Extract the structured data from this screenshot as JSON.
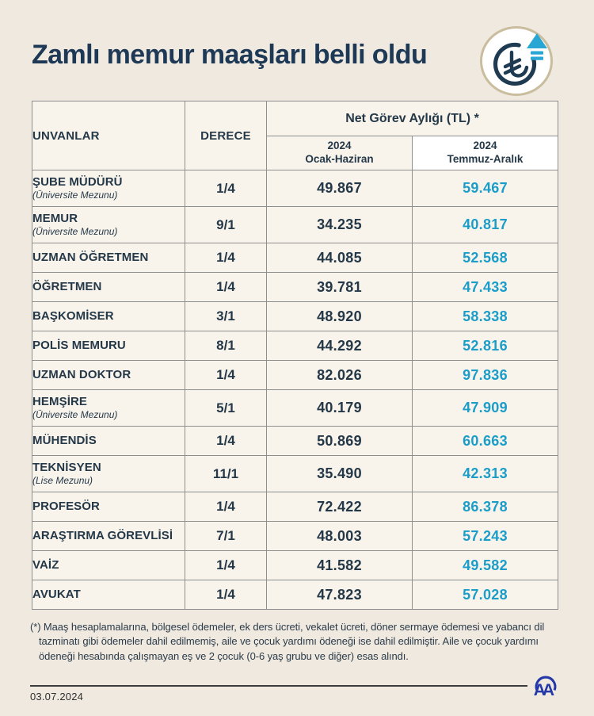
{
  "header": {
    "title": "Zamlı memur maaşları belli oldu"
  },
  "table": {
    "col_unvanlar": "UNVANLAR",
    "col_derece": "DERECE",
    "group_header": "Net Görev Aylığı (TL) *",
    "sub_col_1": {
      "line1": "2024",
      "line2": "Ocak-Haziran"
    },
    "sub_col_2": {
      "line1": "2024",
      "line2": "Temmuz-Aralık"
    },
    "rows": [
      {
        "title": "ŞUBE MÜDÜRÜ",
        "note": "(Üniversite Mezunu)",
        "derece": "1/4",
        "ocak_haziran": "49.867",
        "temmuz_aralik": "59.467"
      },
      {
        "title": "MEMUR",
        "note": "(Üniversite Mezunu)",
        "derece": "9/1",
        "ocak_haziran": "34.235",
        "temmuz_aralik": "40.817"
      },
      {
        "title": "UZMAN ÖĞRETMEN",
        "note": "",
        "derece": "1/4",
        "ocak_haziran": "44.085",
        "temmuz_aralik": "52.568"
      },
      {
        "title": "ÖĞRETMEN",
        "note": "",
        "derece": "1/4",
        "ocak_haziran": "39.781",
        "temmuz_aralik": "47.433"
      },
      {
        "title": "BAŞKOMİSER",
        "note": "",
        "derece": "3/1",
        "ocak_haziran": "48.920",
        "temmuz_aralik": "58.338"
      },
      {
        "title": "POLİS MEMURU",
        "note": "",
        "derece": "8/1",
        "ocak_haziran": "44.292",
        "temmuz_aralik": "52.816"
      },
      {
        "title": "UZMAN DOKTOR",
        "note": "",
        "derece": "1/4",
        "ocak_haziran": "82.026",
        "temmuz_aralik": "97.836"
      },
      {
        "title": "HEMŞİRE",
        "note": "(Üniversite Mezunu)",
        "derece": "5/1",
        "ocak_haziran": "40.179",
        "temmuz_aralik": "47.909"
      },
      {
        "title": "MÜHENDİS",
        "note": "",
        "derece": "1/4",
        "ocak_haziran": "50.869",
        "temmuz_aralik": "60.663"
      },
      {
        "title": "TEKNİSYEN",
        "note": "(Lise Mezunu)",
        "derece": "11/1",
        "ocak_haziran": "35.490",
        "temmuz_aralik": "42.313"
      },
      {
        "title": "PROFESÖR",
        "note": "",
        "derece": "1/4",
        "ocak_haziran": "72.422",
        "temmuz_aralik": "86.378"
      },
      {
        "title": "ARAŞTIRMA GÖREVLİSİ",
        "note": "",
        "derece": "7/1",
        "ocak_haziran": "48.003",
        "temmuz_aralik": "57.243"
      },
      {
        "title": "VAİZ",
        "note": "",
        "derece": "1/4",
        "ocak_haziran": "41.582",
        "temmuz_aralik": "49.582"
      },
      {
        "title": "AVUKAT",
        "note": "",
        "derece": "1/4",
        "ocak_haziran": "47.823",
        "temmuz_aralik": "57.028"
      }
    ]
  },
  "footer": {
    "footnote": "(*) Maaş hesaplamalarına, bölgesel ödemeler, ek ders ücreti, vekalet ücreti, döner sermaye ödemesi ve yabancı dil tazminatı gibi ödemeler dahil edilmemiş, aile ve çocuk yardımı ödeneği ise dahil edilmiştir. Aile ve çocuk yardımı ödeneği hesabında çalışmayan eş ve 2 çocuk (0-6 yaş grubu ve diğer) esas alındı.",
    "date": "03.07.2024",
    "agency_logo_text": "AA"
  },
  "colors": {
    "background": "#efe9e0",
    "cell_cream": "#f8f4ec",
    "cell_white": "#ffffff",
    "navy_text": "#243848",
    "title_navy": "#1d3956",
    "accent_cyan": "#1b9dc9",
    "badge_ring_tan": "#c9bd9e",
    "logo_blue": "#2438a8",
    "border_gray": "#8f8f8f"
  },
  "chart_data": {
    "type": "table",
    "title": "Zamlı memur maaşları belli oldu",
    "column_group": "Net Görev Aylığı (TL) *",
    "columns": [
      "UNVANLAR",
      "DERECE",
      "2024 Ocak-Haziran",
      "2024 Temmuz-Aralık"
    ],
    "rows": [
      [
        "ŞUBE MÜDÜRÜ (Üniversite Mezunu)",
        "1/4",
        49867,
        59467
      ],
      [
        "MEMUR (Üniversite Mezunu)",
        "9/1",
        34235,
        40817
      ],
      [
        "UZMAN ÖĞRETMEN",
        "1/4",
        44085,
        52568
      ],
      [
        "ÖĞRETMEN",
        "1/4",
        39781,
        47433
      ],
      [
        "BAŞKOMİSER",
        "3/1",
        48920,
        58338
      ],
      [
        "POLİS MEMURU",
        "8/1",
        44292,
        52816
      ],
      [
        "UZMAN DOKTOR",
        "1/4",
        82026,
        97836
      ],
      [
        "HEMŞİRE (Üniversite Mezunu)",
        "5/1",
        40179,
        47909
      ],
      [
        "MÜHENDİS",
        "1/4",
        50869,
        60663
      ],
      [
        "TEKNİSYEN (Lise Mezunu)",
        "11/1",
        35490,
        42313
      ],
      [
        "PROFESÖR",
        "1/4",
        72422,
        86378
      ],
      [
        "ARAŞTIRMA GÖREVLİSİ",
        "7/1",
        48003,
        57243
      ],
      [
        "VAİZ",
        "1/4",
        41582,
        49582
      ],
      [
        "AVUKAT",
        "1/4",
        47823,
        57028
      ]
    ],
    "footnote_date": "03.07.2024"
  }
}
